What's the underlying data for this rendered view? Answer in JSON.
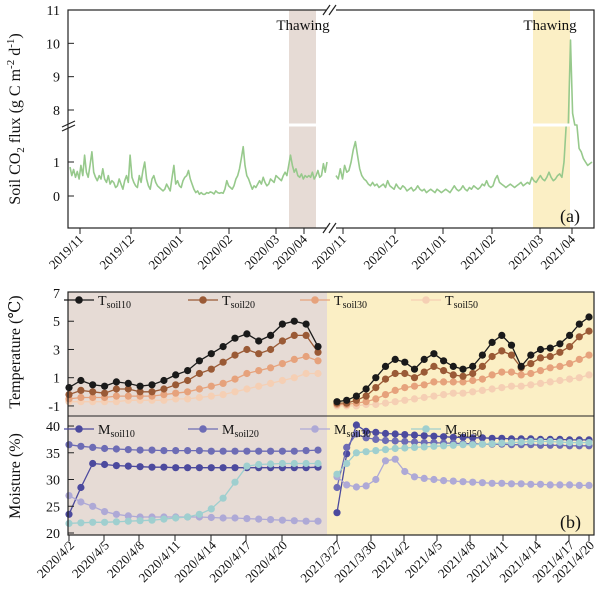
{
  "panel_a": {
    "label": "(a)",
    "ylabel_main": "Soil CO",
    "ylabel_sub": "2",
    "ylabel_rest": " flux (g C m",
    "ylabel_sup1": "-2",
    "ylabel_mid": " d",
    "ylabel_sup2": "-1",
    "ylabel_end": ")",
    "annotation_1": "Thawing",
    "annotation_2": "Thawing"
  },
  "panel_b": {
    "label": "(b)",
    "ylabel_top": "Temperature (℃)",
    "ylabel_bottom": "Moisture (%)"
  },
  "colors": {
    "flux": "#97c98c",
    "shade_2020": "#e6dbd5",
    "shade_2021": "#fbefc5",
    "t10": "#1a1a1a",
    "t20": "#9a5a36",
    "t30": "#e6a27c",
    "t50": "#f5cfb4",
    "m10": "#4c4a9e",
    "m20": "#6d6cb5",
    "m30": "#aea9d6",
    "m50": "#9fcfcf"
  },
  "chart_data": [
    {
      "type": "line",
      "title": "",
      "ylabel": "Soil CO2 flux (g C m-2 d-1)",
      "x_ticks": [
        "2019/11",
        "2019/12",
        "2020/01",
        "2020/02",
        "2020/03",
        "2020/04",
        "2020/11",
        "2020/12",
        "2021/01",
        "2021/02",
        "2021/03",
        "2021/04"
      ],
      "y_ticks_lower": [
        "0",
        "1"
      ],
      "y_ticks_upper": [
        "8",
        "9",
        "10",
        "11"
      ],
      "ylim_lower": [
        -0.35,
        1.9
      ],
      "ylim_upper": [
        7.7,
        11
      ],
      "broken_axis": true,
      "series": [
        {
          "segment": "2019-11 to 2020-04",
          "values": [
            0.85,
            0.6,
            0.78,
            0.55,
            0.72,
            0.5,
            0.9,
            0.6,
            1.2,
            0.7,
            0.55,
            0.9,
            1.3,
            0.7,
            0.55,
            0.45,
            0.6,
            0.5,
            0.8,
            0.5,
            0.4,
            0.6,
            0.35,
            0.45,
            0.4,
            0.25,
            0.3,
            0.5,
            0.35,
            0.2,
            0.45,
            0.6,
            0.4,
            1.2,
            0.55,
            0.4,
            0.3,
            0.25,
            0.6,
            0.4,
            0.75,
            1.0,
            0.5,
            0.3,
            0.2,
            0.5,
            0.6,
            0.4,
            0.3,
            0.25,
            0.2,
            0.15,
            0.2,
            0.35,
            0.25,
            0.15,
            0.55,
            0.9,
            0.35,
            0.45,
            0.3,
            0.25,
            0.45,
            0.55,
            0.6,
            0.75,
            0.5,
            0.35,
            0.2,
            0.1,
            0.15,
            0.05,
            0.1,
            0.05,
            0.05,
            0.1,
            0.08,
            0.12,
            0.1,
            0.06,
            0.15,
            0.1,
            0.08,
            0.1,
            0.08,
            0.2,
            0.45,
            0.3,
            0.25,
            0.2,
            0.3,
            0.5,
            0.6,
            0.8,
            1.1,
            1.45,
            0.9,
            0.6,
            0.5,
            0.35,
            0.2,
            0.3,
            0.25,
            0.35,
            0.45,
            0.35,
            0.55,
            0.4,
            0.3,
            0.35,
            0.5,
            0.45,
            0.4,
            0.6,
            0.55,
            0.5,
            0.45,
            0.6,
            0.7,
            0.6,
            0.9,
            1.2,
            0.9,
            0.7,
            0.8,
            0.6,
            0.55,
            0.65,
            0.5,
            0.6,
            0.55,
            0.6,
            0.55,
            0.7,
            0.5,
            0.6,
            0.75,
            0.55,
            0.6,
            0.95,
            0.7,
            1.0
          ]
        },
        {
          "segment": "2020-11 to 2021-04",
          "values": [
            0.6,
            0.5,
            0.8,
            0.5,
            0.9,
            0.7,
            0.75,
            1.0,
            1.35,
            1.6,
            1.2,
            0.8,
            0.6,
            0.5,
            0.45,
            0.35,
            0.3,
            0.4,
            0.3,
            0.35,
            0.25,
            0.3,
            0.35,
            0.25,
            0.45,
            0.3,
            0.25,
            0.2,
            0.35,
            0.25,
            0.2,
            0.3,
            0.25,
            0.15,
            0.2,
            0.25,
            0.15,
            0.2,
            0.3,
            0.2,
            0.15,
            0.2,
            0.1,
            0.15,
            0.2,
            0.15,
            0.1,
            0.2,
            0.15,
            0.1,
            0.15,
            0.2,
            0.15,
            0.1,
            0.2,
            0.3,
            0.2,
            0.15,
            0.2,
            0.3,
            0.2,
            0.15,
            0.25,
            0.2,
            0.3,
            0.25,
            0.2,
            0.25,
            0.35,
            0.3,
            0.45,
            0.3,
            0.25,
            0.3,
            0.5,
            0.6,
            0.4,
            0.35,
            0.3,
            0.25,
            0.3,
            0.35,
            0.3,
            0.25,
            0.3,
            0.35,
            0.4,
            0.3,
            0.35,
            0.4,
            0.35,
            0.55,
            0.45,
            0.4,
            0.5,
            0.6,
            0.5,
            0.45,
            0.55,
            0.7,
            0.55,
            0.45,
            0.5,
            0.6,
            0.65,
            0.55,
            1.0,
            2.0,
            4.5,
            10.1,
            7.9,
            4.5,
            2.0,
            1.4,
            1.3,
            1.1,
            1.0,
            0.9,
            0.95,
            1.0
          ]
        }
      ],
      "thaw_windows": [
        "2020/03/27-2020/04/20",
        "2021/03/17-2021/04/20"
      ]
    },
    {
      "type": "line",
      "title": "",
      "ylabel": "Temperature (℃)",
      "y_ticks": [
        "-1",
        "1",
        "3",
        "5",
        "7"
      ],
      "ylim": [
        -1.5,
        7
      ],
      "legend": [
        "Tsoil10",
        "Tsoil20",
        "Tsoil30",
        "Tsoil50"
      ],
      "legend_base": "T",
      "legend_subs": [
        "soil10",
        "soil20",
        "soil30",
        "soil50"
      ],
      "series": [
        {
          "name": "Tsoil10",
          "seg2020": [
            0.3,
            0.8,
            0.5,
            0.4,
            0.7,
            0.6,
            0.4,
            0.5,
            0.8,
            1.2,
            1.5,
            2.2,
            2.7,
            3.2,
            3.8,
            4.1,
            3.6,
            4.0,
            4.8,
            5.0,
            4.8,
            3.2
          ],
          "seg2021": [
            -0.7,
            -0.6,
            -0.3,
            0.2,
            1.0,
            1.8,
            2.3,
            2.1,
            1.6,
            2.3,
            2.7,
            2.2,
            1.8,
            1.6,
            1.8,
            2.6,
            3.5,
            4.0,
            3.3,
            1.8,
            2.6,
            3.0,
            3.1,
            3.4,
            4.0,
            4.8,
            5.3
          ]
        },
        {
          "name": "Tsoil20",
          "seg2020": [
            -0.2,
            0.1,
            0.0,
            -0.1,
            0.2,
            0.2,
            0.0,
            0.0,
            0.2,
            0.5,
            0.8,
            1.3,
            1.6,
            2.1,
            2.6,
            3.0,
            2.7,
            3.0,
            3.6,
            4.0,
            4.0,
            2.8
          ],
          "seg2021": [
            -0.8,
            -0.8,
            -0.6,
            -0.3,
            0.3,
            0.9,
            1.3,
            1.3,
            1.0,
            1.4,
            1.8,
            1.5,
            1.2,
            1.1,
            1.3,
            1.8,
            2.5,
            2.9,
            2.6,
            1.7,
            2.0,
            2.4,
            2.5,
            2.8,
            3.2,
            3.9,
            4.3
          ]
        },
        {
          "name": "Tsoil30",
          "seg2020": [
            -0.5,
            -0.4,
            -0.4,
            -0.4,
            -0.3,
            -0.3,
            -0.3,
            -0.3,
            -0.2,
            -0.1,
            0.0,
            0.2,
            0.4,
            0.6,
            0.9,
            1.3,
            1.5,
            1.7,
            2.0,
            2.3,
            2.5,
            2.2
          ],
          "seg2021": [
            -0.9,
            -0.9,
            -0.8,
            -0.7,
            -0.5,
            -0.2,
            0.1,
            0.3,
            0.4,
            0.5,
            0.7,
            0.7,
            0.7,
            0.7,
            0.8,
            0.9,
            1.2,
            1.4,
            1.4,
            1.2,
            1.3,
            1.5,
            1.7,
            1.8,
            2.0,
            2.3,
            2.6
          ]
        },
        {
          "name": "Tsoil50",
          "seg2020": [
            -0.7,
            -0.7,
            -0.7,
            -0.7,
            -0.7,
            -0.6,
            -0.6,
            -0.6,
            -0.6,
            -0.5,
            -0.5,
            -0.4,
            -0.3,
            -0.2,
            0.0,
            0.2,
            0.4,
            0.6,
            0.8,
            1.0,
            1.3,
            1.3
          ],
          "seg2021": [
            -1.0,
            -1.0,
            -1.0,
            -0.9,
            -0.9,
            -0.8,
            -0.7,
            -0.6,
            -0.5,
            -0.4,
            -0.3,
            -0.2,
            -0.1,
            -0.1,
            0.0,
            0.1,
            0.2,
            0.3,
            0.4,
            0.4,
            0.5,
            0.6,
            0.7,
            0.8,
            0.9,
            1.0,
            1.2
          ]
        }
      ]
    },
    {
      "type": "line",
      "title": "",
      "ylabel": "Moisture (%)",
      "y_ticks": [
        "20",
        "25",
        "30",
        "35",
        "40"
      ],
      "ylim": [
        20,
        41.5
      ],
      "x_ticks": [
        "2020/4/2",
        "2020/4/5",
        "2020/4/8",
        "2020/4/11",
        "2020/4/14",
        "2020/4/17",
        "2020/4/20",
        "2021/3/27",
        "2021/3/30",
        "2021/4/2",
        "2021/4/5",
        "2021/4/8",
        "2021/4/11",
        "2021/4/14",
        "2021/4/17",
        "2021/4/20"
      ],
      "legend": [
        "Msoil10",
        "Msoil20",
        "Msoil30",
        "Msoil50"
      ],
      "legend_base": "M",
      "legend_subs": [
        "soil10",
        "soil20",
        "soil30",
        "soil50"
      ],
      "series": [
        {
          "name": "Msoil10",
          "seg2020": [
            23.5,
            28.5,
            33.0,
            32.8,
            32.6,
            32.5,
            32.4,
            32.3,
            32.3,
            32.2,
            32.2,
            32.2,
            32.2,
            32.2,
            32.2,
            32.2,
            32.2,
            32.2,
            32.2,
            32.2,
            32.2,
            32.3
          ],
          "seg2021": [
            23.8,
            34.8,
            40.2,
            39.0,
            38.8,
            38.6,
            38.5,
            38.4,
            38.3,
            38.2,
            38.1,
            38.0,
            37.9,
            37.9,
            37.8,
            37.8,
            37.7,
            37.7,
            37.6,
            37.6,
            37.6,
            37.5,
            37.5,
            37.5,
            37.4,
            37.4,
            37.4
          ]
        },
        {
          "name": "Msoil20",
          "seg2020": [
            36.5,
            36.2,
            36.0,
            35.8,
            35.7,
            35.6,
            35.5,
            35.5,
            35.4,
            35.4,
            35.4,
            35.4,
            35.3,
            35.3,
            35.3,
            35.3,
            35.3,
            35.3,
            35.3,
            35.3,
            35.4,
            35.5
          ],
          "seg2021": [
            28.5,
            36.0,
            38.5,
            37.8,
            37.5,
            37.3,
            37.2,
            37.1,
            37.0,
            36.9,
            36.9,
            36.8,
            36.8,
            36.7,
            36.7,
            36.6,
            36.6,
            36.6,
            36.5,
            36.5,
            36.5,
            36.4,
            36.4,
            36.4,
            36.3,
            36.3,
            36.3
          ]
        },
        {
          "name": "Msoil30",
          "seg2020": [
            27.0,
            25.8,
            25.0,
            24.0,
            23.5,
            23.2,
            23.0,
            23.0,
            23.0,
            23.0,
            23.0,
            23.0,
            22.9,
            22.8,
            22.8,
            22.7,
            22.6,
            22.5,
            22.4,
            22.3,
            22.2,
            22.2
          ],
          "seg2021": [
            30.5,
            29.0,
            28.6,
            28.8,
            30.0,
            33.5,
            33.8,
            31.5,
            30.5,
            30.2,
            30.0,
            29.8,
            29.7,
            29.6,
            29.5,
            29.4,
            29.3,
            29.3,
            29.2,
            29.2,
            29.1,
            29.1,
            29.0,
            29.0,
            29.0,
            28.9,
            28.9
          ]
        },
        {
          "name": "Msoil50",
          "seg2020": [
            21.8,
            21.9,
            22.0,
            22.0,
            22.1,
            22.2,
            22.3,
            22.4,
            22.6,
            22.8,
            23.0,
            23.5,
            24.5,
            26.5,
            29.5,
            32.5,
            32.8,
            32.9,
            33.0,
            33.0,
            33.0,
            33.0
          ],
          "seg2021": [
            31.0,
            33.0,
            35.0,
            35.2,
            35.4,
            35.6,
            35.8,
            35.9,
            36.0,
            36.1,
            36.2,
            36.3,
            36.4,
            36.5,
            36.5,
            36.6,
            36.7,
            36.8,
            36.9,
            37.0,
            37.1,
            37.1,
            37.1,
            37.0,
            36.9,
            36.9,
            36.9
          ]
        }
      ]
    }
  ]
}
